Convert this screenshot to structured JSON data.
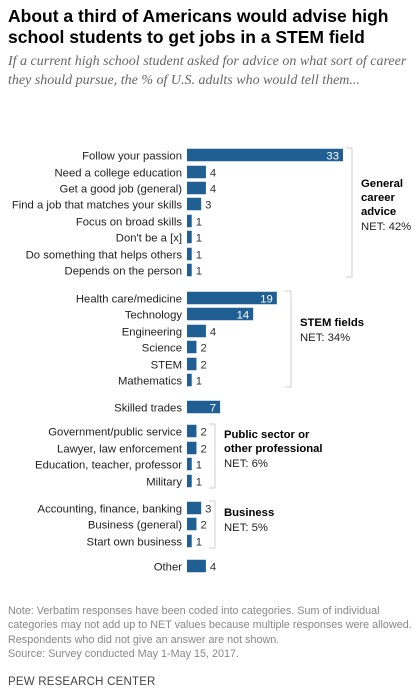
{
  "title": "About a third of Americans would advise high school students to get jobs in a STEM field",
  "subtitle": "If a current high school student asked for advice on what sort of career they should pursue, the % of U.S. adults who would tell them...",
  "note": "Note: Verbatim responses have been coded into categories. Sum of individual categories may not add up to NET values because multiple responses were allowed. Respondents who did not give an answer are not shown.",
  "source": "Source: Survey conducted May 1-May 15, 2017.",
  "org": "PEW RESEARCH CENTER",
  "colors": {
    "bar": "#1f5f94",
    "bracket": "#cfcfcf",
    "label_inside": "#ffffff",
    "label_outside": "#333333"
  },
  "chart_data": {
    "type": "bar",
    "orientation": "horizontal",
    "xlim": [
      0,
      33
    ],
    "categories": [
      "Follow your passion",
      "Need a college education",
      "Get a good job (general)",
      "Find a job that matches your skills",
      "Focus on broad skills",
      "Don't be a [x]",
      "Do something that helps others",
      "Depends on the person",
      "Health care/medicine",
      "Technology",
      "Engineering",
      "Science",
      "STEM",
      "Mathematics",
      "Skilled trades",
      "Government/public service",
      "Lawyer, law enforcement",
      "Education, teacher, professor",
      "Military",
      "Accounting, finance, banking",
      "Business (general)",
      "Start own business",
      "Other"
    ],
    "values": [
      33,
      4,
      4,
      3,
      1,
      1,
      1,
      1,
      19,
      14,
      4,
      2,
      2,
      1,
      7,
      2,
      2,
      1,
      1,
      3,
      2,
      1,
      4
    ],
    "groups": [
      {
        "name_lines": [
          "General",
          "career",
          "advice"
        ],
        "net": "NET: 42%",
        "start": 0,
        "end": 7
      },
      {
        "name_lines": [
          "STEM fields"
        ],
        "net": "NET: 34%",
        "start": 8,
        "end": 13
      },
      {
        "name_lines": [
          "Public sector or",
          "other professional"
        ],
        "net": "NET: 6%",
        "start": 15,
        "end": 18
      },
      {
        "name_lines": [
          "Business"
        ],
        "net": "NET: 5%",
        "start": 19,
        "end": 21
      }
    ]
  }
}
